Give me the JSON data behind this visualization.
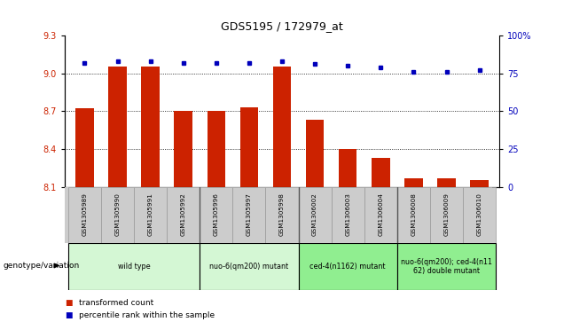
{
  "title": "GDS5195 / 172979_at",
  "samples": [
    "GSM1305989",
    "GSM1305990",
    "GSM1305991",
    "GSM1305992",
    "GSM1305996",
    "GSM1305997",
    "GSM1305998",
    "GSM1306002",
    "GSM1306003",
    "GSM1306004",
    "GSM1306008",
    "GSM1306009",
    "GSM1306010"
  ],
  "red_values": [
    8.72,
    9.05,
    9.05,
    8.7,
    8.7,
    8.73,
    9.05,
    8.63,
    8.4,
    8.33,
    8.17,
    8.17,
    8.15
  ],
  "blue_values_pct": [
    82,
    83,
    83,
    82,
    82,
    82,
    83,
    81,
    80,
    79,
    76,
    76,
    77
  ],
  "ylim_left": [
    8.1,
    9.3
  ],
  "ylim_right": [
    0,
    100
  ],
  "yticks_left": [
    8.1,
    8.4,
    8.7,
    9.0,
    9.3
  ],
  "yticks_right": [
    0,
    25,
    50,
    75,
    100
  ],
  "ytick_labels_right": [
    "0",
    "25",
    "50",
    "75",
    "100%"
  ],
  "grid_values": [
    8.4,
    8.7,
    9.0
  ],
  "group_ranges": [
    [
      0,
      3
    ],
    [
      4,
      6
    ],
    [
      7,
      9
    ],
    [
      10,
      12
    ]
  ],
  "group_labels": [
    "wild type",
    "nuo-6(qm200) mutant",
    "ced-4(n1162) mutant",
    "nuo-6(qm200); ced-4(n11\n62) double mutant"
  ],
  "group_colors": [
    "#d4f7d4",
    "#d4f7d4",
    "#90ee90",
    "#90ee90"
  ],
  "group_borders": [
    3.5,
    6.5,
    9.5
  ],
  "genotype_label": "genotype/variation",
  "legend_items": [
    "transformed count",
    "percentile rank within the sample"
  ],
  "bar_color": "#cc2200",
  "dot_color": "#0000bb",
  "sample_bg": "#cccccc",
  "plot_bg": "#ffffff"
}
